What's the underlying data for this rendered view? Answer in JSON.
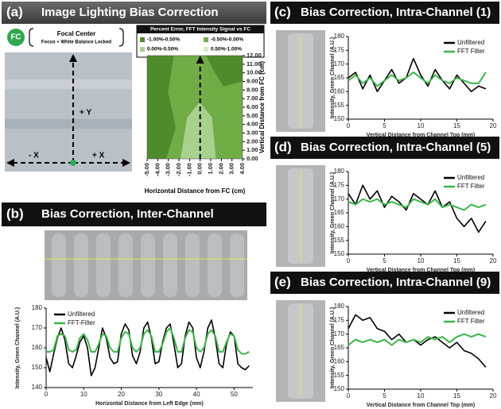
{
  "panels": [
    {
      "label": "(a)",
      "title": "Image Lighting Bias Correction"
    },
    {
      "label": "(b)",
      "title": "Bias Correction, Inter-Channel"
    },
    {
      "label": "(c)",
      "title": "Bias Correction, Intra-Channel (1)"
    },
    {
      "label": "(d)",
      "title": "Bias Correction, Intra-Channel (5)"
    },
    {
      "label": "(e)",
      "title": "Bias Correction, Intra-Channel (9)"
    }
  ],
  "focal_center": {
    "badge": "FC",
    "title": "Focal Center",
    "subtitle": "Focus + White Balance Locked",
    "plus_y": "+ Y",
    "minus_x": "- X",
    "plus_x": "+ X"
  },
  "chart_data": [
    {
      "type": "contour",
      "title": "Percent Error, FFT  Intensity Signal vs FC",
      "x_label": "Horizontal Distance from FC (cm)",
      "y_label": "Vertical Distance from FC (cm)",
      "series": [
        {
          "name": "-1.00%-0.50%",
          "color": "#4f8a2b"
        },
        {
          "name": "-0.50%-0.00%",
          "color": "#70ad47"
        },
        {
          "name": "0.00%-0.50%",
          "color": "#a9d18e"
        },
        {
          "name": "0.50%-1.00%",
          "color": "#d5e8c4"
        }
      ],
      "xlim": [
        -5,
        4
      ],
      "xticks": [
        {
          "value": -5,
          "label": "-5.00"
        },
        {
          "value": -4,
          "label": "-4.00"
        },
        {
          "value": -3,
          "label": "-3.00"
        },
        {
          "value": -2,
          "label": "-2.00"
        },
        {
          "value": -1,
          "label": "-1.00"
        },
        {
          "value": 0,
          "label": "0.00"
        },
        {
          "value": 1,
          "label": "1.00"
        },
        {
          "value": 2,
          "label": "2.00"
        },
        {
          "value": 3,
          "label": "3.00"
        },
        {
          "value": 4,
          "label": "4.00"
        }
      ],
      "ylim": [
        0,
        12
      ],
      "yticks": [
        {
          "value": 0,
          "label": "0.00"
        },
        {
          "value": 1,
          "label": "1.00"
        },
        {
          "value": 2,
          "label": "2.00"
        },
        {
          "value": 3,
          "label": "3.00"
        },
        {
          "value": 4,
          "label": "4.00"
        },
        {
          "value": 5,
          "label": "5.00"
        },
        {
          "value": 6,
          "label": "6.00"
        },
        {
          "value": 7,
          "label": "7.00"
        },
        {
          "value": 8,
          "label": "8.00"
        },
        {
          "value": 9,
          "label": "9.00"
        },
        {
          "value": 10,
          "label": "10.00"
        },
        {
          "value": 11,
          "label": "11.00"
        },
        {
          "value": 12,
          "label": "12.00"
        }
      ]
    },
    {
      "type": "line",
      "x_label": "Horizontal Distance from Left Edge (mm)",
      "y_label": "Intensity, Green Channel (A.U.)",
      "legend": "upper-left",
      "x": [
        0,
        1,
        2,
        3,
        4,
        5,
        6,
        7,
        8,
        9,
        10,
        11,
        12,
        13,
        14,
        15,
        16,
        17,
        18,
        19,
        20,
        21,
        22,
        23,
        24,
        25,
        26,
        27,
        28,
        29,
        30,
        31,
        32,
        33,
        34,
        35,
        36,
        37,
        38,
        39,
        40,
        41,
        42,
        43,
        44,
        45,
        46,
        47,
        48,
        49,
        50,
        51,
        52,
        53,
        54
      ],
      "series": [
        {
          "name": "Unfiltered",
          "color": "#000000",
          "values": [
            155,
            148,
            157,
            165,
            170,
            164,
            152,
            150,
            156,
            163,
            166,
            160,
            146,
            150,
            160,
            170,
            165,
            155,
            152,
            153,
            167,
            172,
            169,
            156,
            152,
            158,
            170,
            173,
            165,
            152,
            153,
            163,
            170,
            172,
            162,
            150,
            152,
            166,
            173,
            170,
            155,
            150,
            158,
            170,
            174,
            165,
            152,
            150,
            162,
            168,
            166,
            152,
            150,
            149,
            151
          ]
        },
        {
          "name": "FFT-Filter",
          "color": "#3cb44b",
          "values": [
            158,
            158,
            159,
            166,
            167,
            166,
            159,
            158,
            159,
            165,
            167,
            164,
            158,
            158,
            162,
            167,
            166,
            160,
            158,
            158,
            165,
            168,
            167,
            160,
            158,
            160,
            167,
            169,
            166,
            158,
            158,
            162,
            168,
            170,
            165,
            158,
            158,
            165,
            169,
            168,
            160,
            158,
            160,
            167,
            169,
            166,
            158,
            158,
            163,
            167,
            166,
            159,
            157,
            157,
            158
          ]
        }
      ],
      "xlim": [
        0,
        55
      ],
      "xticks": [
        0,
        10,
        20,
        30,
        40,
        50
      ],
      "ylim": [
        140,
        180
      ],
      "yticks": [
        140,
        150,
        160,
        170,
        180
      ]
    },
    {
      "type": "line",
      "x_label": "Vertical Distance from Channel Top (mm)",
      "y_label": "Intensity, Green Channel (A.U.)",
      "legend": "upper-right",
      "x": [
        0,
        1,
        2,
        3,
        4,
        5,
        6,
        7,
        8,
        9,
        10,
        11,
        12,
        13,
        14,
        15,
        16,
        17,
        18,
        19
      ],
      "series": [
        {
          "name": "Unfiltered",
          "color": "#000000",
          "values": [
            165,
            167,
            161,
            166,
            160,
            164,
            168,
            163,
            165,
            172,
            166,
            162,
            168,
            164,
            161,
            166,
            163,
            160,
            162,
            161
          ]
        },
        {
          "name": "FFT Filter",
          "color": "#3cb44b",
          "values": [
            164,
            166,
            163,
            165,
            162,
            164,
            166,
            164,
            165,
            167,
            165,
            163,
            166,
            164,
            163,
            165,
            164,
            163,
            163,
            167
          ]
        }
      ],
      "xlim": [
        0,
        20
      ],
      "xticks": [
        0,
        5,
        10,
        15,
        20
      ],
      "ylim": [
        150,
        180
      ],
      "yticks": [
        150,
        155,
        160,
        165,
        170,
        175,
        180
      ]
    },
    {
      "type": "line",
      "x_label": "Vertical Distance from Channel Top (mm)",
      "y_label": "Intensity, Green Channel (A.U.)",
      "legend": "upper-right",
      "x": [
        0,
        1,
        2,
        3,
        4,
        5,
        6,
        7,
        8,
        9,
        10,
        11,
        12,
        13,
        14,
        15,
        16,
        17,
        18,
        19
      ],
      "series": [
        {
          "name": "Unfiltered",
          "color": "#000000",
          "values": [
            172,
            168,
            175,
            170,
            173,
            167,
            171,
            169,
            166,
            172,
            170,
            168,
            173,
            167,
            169,
            163,
            160,
            163,
            158,
            162
          ]
        },
        {
          "name": "FFT Filter",
          "color": "#3cb44b",
          "values": [
            169,
            168,
            170,
            169,
            170,
            168,
            169,
            168,
            167,
            170,
            169,
            168,
            170,
            167,
            168,
            167,
            166,
            168,
            167,
            168
          ]
        }
      ],
      "xlim": [
        0,
        20
      ],
      "xticks": [
        0,
        5,
        10,
        15,
        20
      ],
      "ylim": [
        150,
        180
      ],
      "yticks": [
        150,
        155,
        160,
        165,
        170,
        175,
        180
      ]
    },
    {
      "type": "line",
      "x_label": "Vertical Distance from Channel Top (mm)",
      "y_label": "Intensity, Green Channel (A.U.)",
      "legend": "upper-right",
      "x": [
        0,
        1,
        2,
        3,
        4,
        5,
        6,
        7,
        8,
        9,
        10,
        11,
        12,
        13,
        14,
        15,
        16,
        17,
        18,
        19
      ],
      "series": [
        {
          "name": "Unfiltered",
          "color": "#000000",
          "values": [
            172,
            177,
            175,
            176,
            172,
            171,
            168,
            170,
            167,
            168,
            166,
            168,
            169,
            167,
            165,
            167,
            164,
            163,
            161,
            158
          ]
        },
        {
          "name": "FFT Filter",
          "color": "#3cb44b",
          "values": [
            166,
            168,
            167,
            168,
            167,
            168,
            166,
            168,
            167,
            168,
            167,
            169,
            168,
            169,
            167,
            169,
            170,
            169,
            170,
            169
          ]
        }
      ],
      "xlim": [
        0,
        20
      ],
      "xticks": [
        0,
        5,
        10,
        15,
        20
      ],
      "ylim": [
        150,
        180
      ],
      "yticks": [
        150,
        155,
        160,
        165,
        170,
        175,
        180
      ]
    }
  ]
}
